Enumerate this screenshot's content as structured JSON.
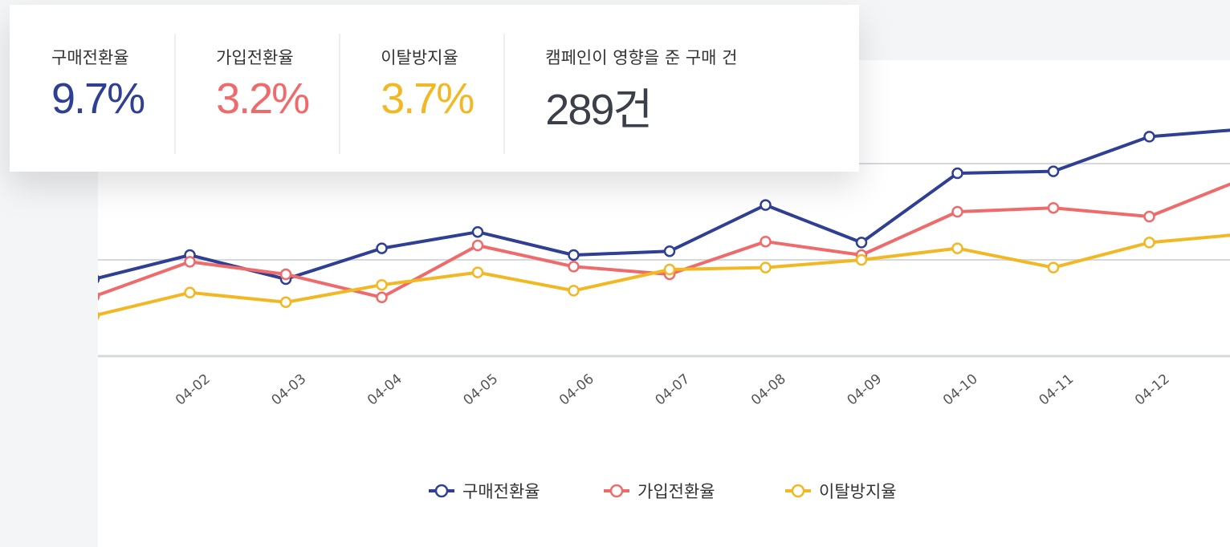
{
  "kpis": [
    {
      "label": "구매전환율",
      "value": "9.7%",
      "color": "#2f3f94"
    },
    {
      "label": "가입전환율",
      "value": "3.2%",
      "color": "#ef6b6b"
    },
    {
      "label": "이탈방지율",
      "value": "3.7%",
      "color": "#f2b824"
    },
    {
      "label": "캠페인이 영향을 준 구매 건",
      "value": "289건",
      "color": "#3a3f4a"
    }
  ],
  "chart_data": {
    "type": "line",
    "categories": [
      null,
      "04-02",
      "04-03",
      "04-04",
      "04-05",
      "04-06",
      "04-07",
      "04-08",
      "04-09",
      "04-10",
      "04-11",
      "04-12",
      null
    ],
    "series": [
      {
        "name": "구매전환율",
        "color": "#2f3f94",
        "values": [
          4.0,
          5.25,
          4.0,
          5.6,
          6.45,
          5.25,
          5.45,
          7.85,
          5.9,
          9.5,
          9.6,
          11.4,
          11.8
        ]
      },
      {
        "name": "가입전환율",
        "color": "#ef6b6b",
        "values": [
          3.1,
          4.9,
          4.25,
          3.05,
          5.75,
          4.65,
          4.25,
          5.95,
          5.25,
          7.5,
          7.7,
          7.25,
          9.25
        ]
      },
      {
        "name": "이탈방지율",
        "color": "#f2b824",
        "values": [
          2.1,
          3.3,
          2.8,
          3.7,
          4.35,
          3.4,
          4.5,
          4.6,
          5.0,
          5.6,
          4.6,
          5.9,
          6.35
        ]
      }
    ],
    "ylim": [
      0,
      15
    ],
    "yticks": [
      0,
      5,
      10
    ],
    "grid": true
  }
}
